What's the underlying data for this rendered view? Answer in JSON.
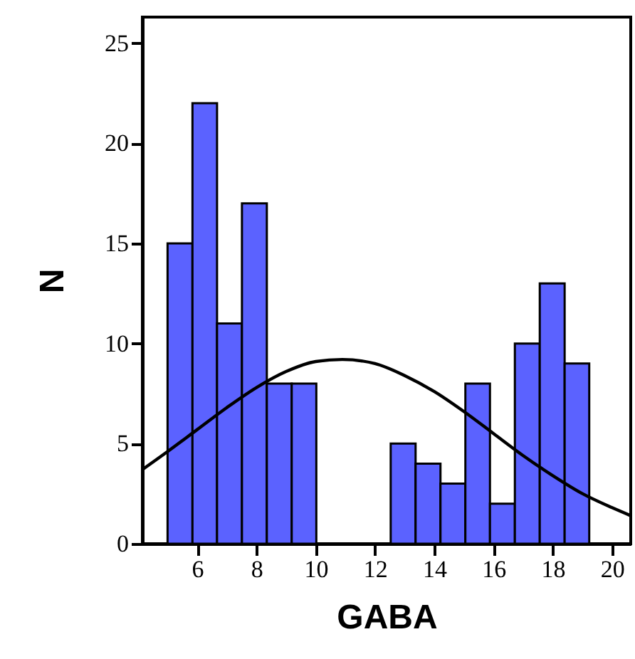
{
  "chart_data": {
    "type": "histogram",
    "xlabel": "GABA",
    "ylabel": "N",
    "bins": [
      5,
      5.84,
      6.67,
      7.51,
      8.35,
      9.19,
      10.02,
      10.86,
      11.7,
      12.53,
      13.37,
      14.21,
      15.05,
      15.88,
      16.72,
      17.56,
      18.4,
      19.23
    ],
    "values": [
      15,
      22,
      11,
      17,
      8,
      8,
      0,
      0,
      0,
      5,
      4,
      3,
      8,
      2,
      10,
      13,
      9
    ],
    "color": "#5b62ff",
    "series": [
      {
        "type": "line",
        "color": "#000000",
        "x": [
          4.15,
          5,
          6,
          7,
          8,
          9,
          10,
          10.9,
          12,
          13,
          14,
          15,
          16,
          17,
          18,
          19,
          20,
          20.63
        ],
        "values": [
          3.7,
          4.6,
          5.7,
          6.8,
          7.8,
          8.6,
          9.1,
          9.2,
          9.0,
          8.4,
          7.6,
          6.6,
          5.5,
          4.4,
          3.4,
          2.5,
          1.8,
          1.4
        ]
      }
    ],
    "xlim": [
      4.15,
      20.63
    ],
    "xticks": [
      6,
      8,
      10,
      12,
      14,
      16,
      18,
      20
    ],
    "ylim": [
      0,
      26.3
    ],
    "yticks": [
      0,
      5,
      10,
      15,
      20,
      25
    ],
    "grid": false
  }
}
